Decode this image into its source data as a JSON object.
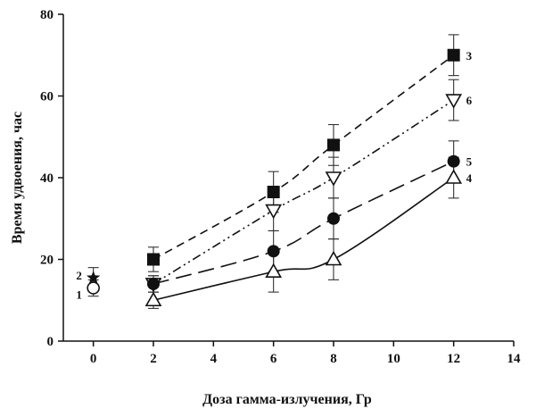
{
  "chart_data": {
    "type": "line",
    "xlabel": "Доза гамма-излучения, Гр",
    "ylabel": "Время удвоения, час",
    "xlim": [
      -1,
      14
    ],
    "ylim": [
      0,
      80
    ],
    "xticks": [
      0,
      2,
      4,
      6,
      8,
      10,
      12,
      14
    ],
    "yticks": [
      0,
      20,
      40,
      60,
      80
    ],
    "grid": false,
    "series": [
      {
        "name": "3",
        "marker": "square-filled",
        "line": "dashed",
        "x": [
          2,
          6,
          8,
          12
        ],
        "y": [
          20,
          36.5,
          48,
          70
        ],
        "err": [
          3,
          5,
          5,
          5
        ]
      },
      {
        "name": "6",
        "marker": "triangle-down-open",
        "line": "dash-dot-dot",
        "x": [
          2,
          6,
          8,
          12
        ],
        "y": [
          14,
          32,
          40,
          59
        ],
        "err": [
          2,
          5,
          5,
          5
        ]
      },
      {
        "name": "5",
        "marker": "circle-filled",
        "line": "long-dash",
        "x": [
          2,
          6,
          8,
          12
        ],
        "y": [
          14,
          22,
          30,
          44
        ],
        "err": [
          2,
          5,
          5,
          5
        ]
      },
      {
        "name": "4",
        "marker": "triangle-up-open",
        "line": "solid",
        "x": [
          2,
          6,
          8,
          12
        ],
        "y": [
          10,
          17,
          20,
          40
        ],
        "err": [
          2,
          5,
          5,
          5
        ]
      }
    ],
    "control_points": [
      {
        "name": "2",
        "marker": "star-filled",
        "x": 0,
        "y": 15.5,
        "err": 2.5
      },
      {
        "name": "1",
        "marker": "circle-open",
        "x": 0,
        "y": 13,
        "err": 2
      }
    ]
  }
}
